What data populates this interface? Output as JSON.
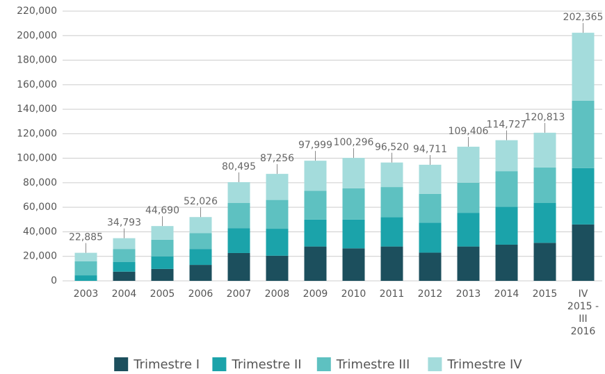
{
  "chart_data": {
    "type": "stacked_bar",
    "categories": [
      "2003",
      "2004",
      "2005",
      "2006",
      "2007",
      "2008",
      "2009",
      "2010",
      "2011",
      "2012",
      "2013",
      "2014",
      "2015",
      "IV\n2015 -\nIII\n2016"
    ],
    "series": [
      {
        "name": "Trimestre I",
        "color": "#1c4f5d",
        "values": [
          0,
          7500,
          9700,
          13000,
          22700,
          20500,
          28000,
          26500,
          28000,
          23000,
          28000,
          29500,
          31000,
          46000
        ]
      },
      {
        "name": "Trimestre II",
        "color": "#1ba3aa",
        "values": [
          4500,
          8000,
          10300,
          13000,
          20300,
          22000,
          22000,
          23500,
          24000,
          24500,
          27500,
          31000,
          32500,
          46000
        ]
      },
      {
        "name": "Trimestre III",
        "color": "#5ec1c1",
        "values": [
          11500,
          10500,
          13500,
          13000,
          20500,
          23500,
          23500,
          25500,
          24500,
          23500,
          24500,
          29000,
          29000,
          55000
        ]
      },
      {
        "name": "Trimestre IV",
        "color": "#a4dcdc",
        "values": [
          6885,
          8793,
          11190,
          13026,
          16995,
          21256,
          24499,
          24796,
          20020,
          23711,
          29406,
          25227,
          28313,
          55365
        ]
      }
    ],
    "totals": [
      22885,
      34793,
      44690,
      52026,
      80495,
      87256,
      97999,
      100296,
      96520,
      94711,
      109406,
      114727,
      120813,
      202365
    ],
    "totals_labels": [
      "22,885",
      "34,793",
      "44,690",
      "52,026",
      "80,495",
      "87,256",
      "97,999",
      "100,296",
      "96,520",
      "94,711",
      "109,406",
      "114,727",
      "120,813",
      "202,365"
    ],
    "ylim": [
      0,
      220000
    ],
    "yticks": [
      0,
      {
        "value": 20000,
        "label": "20,000"
      },
      {
        "value": 40000,
        "label": "40,000"
      },
      {
        "value": 60000,
        "label": "60,000"
      },
      {
        "value": 80000,
        "label": "80,000"
      },
      {
        "value": 100000,
        "label": "100,000"
      },
      {
        "value": 120000,
        "label": "120,000"
      },
      {
        "value": 140000,
        "label": "140,000"
      },
      {
        "value": 160000,
        "label": "160,000"
      },
      {
        "value": 180000,
        "label": "180,000"
      },
      {
        "value": 200000,
        "label": "200,000"
      },
      {
        "value": 220000,
        "label": "220,000"
      }
    ],
    "grid": true,
    "legend": "bottom"
  }
}
